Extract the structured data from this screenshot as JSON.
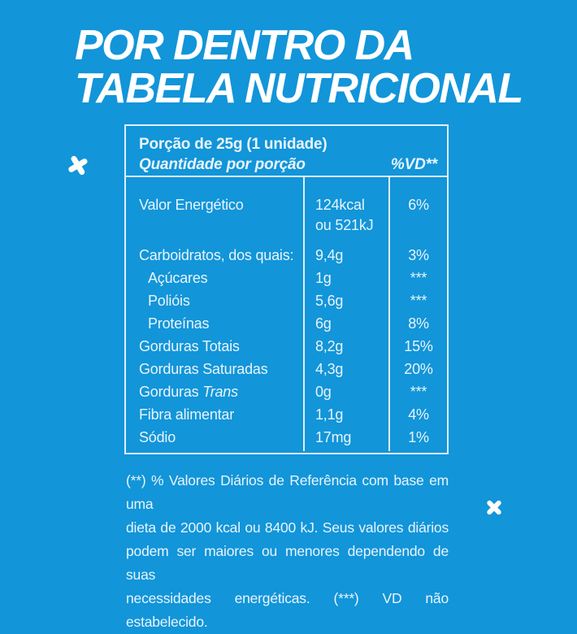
{
  "colors": {
    "background": "#1295d9",
    "text": "#e8f4fc",
    "title": "#ffffff",
    "line": "#dff0fa"
  },
  "title": {
    "line1": "POR DENTRO DA",
    "line2": "TABELA NUTRICIONAL"
  },
  "table": {
    "serving": "Porção de 25g (1 unidade)",
    "quantity_header": "Quantidade por porção",
    "vd_header": "%VD**",
    "rows": [
      {
        "label": "Valor Energético",
        "qty": "124kcal",
        "qty2": "ou 521kJ",
        "vd": "6%"
      },
      {
        "label": "Carboidratos, dos quais:",
        "qty": "9,4g",
        "vd": "3%"
      },
      {
        "label": "Açúcares",
        "qty": "1g",
        "vd": "***"
      },
      {
        "label": "Polióis",
        "qty": "5,6g",
        "vd": "***"
      },
      {
        "label": "Proteínas",
        "qty": "6g",
        "vd": "8%"
      },
      {
        "label": "Gorduras Totais",
        "qty": "8,2g",
        "vd": "15%"
      },
      {
        "label": "Gorduras Saturadas",
        "qty": "4,3g",
        "vd": "20%"
      },
      {
        "label": "Gorduras",
        "label_italic": " Trans",
        "qty": "0g",
        "vd": "***"
      },
      {
        "label": "Fibra alimentar",
        "qty": "1,1g",
        "vd": "4%"
      },
      {
        "label": "Sódio",
        "qty": "17mg",
        "vd": "1%"
      }
    ]
  },
  "footer": {
    "lines": [
      "(**) % Valores Diários de Referência com base em uma",
      "dieta de 2000 kcal ou 8400 kJ. Seus valores diários",
      "podem ser maiores ou menores dependendo de suas",
      "necessidades energéticas. (***) VD não estabelecido."
    ]
  }
}
